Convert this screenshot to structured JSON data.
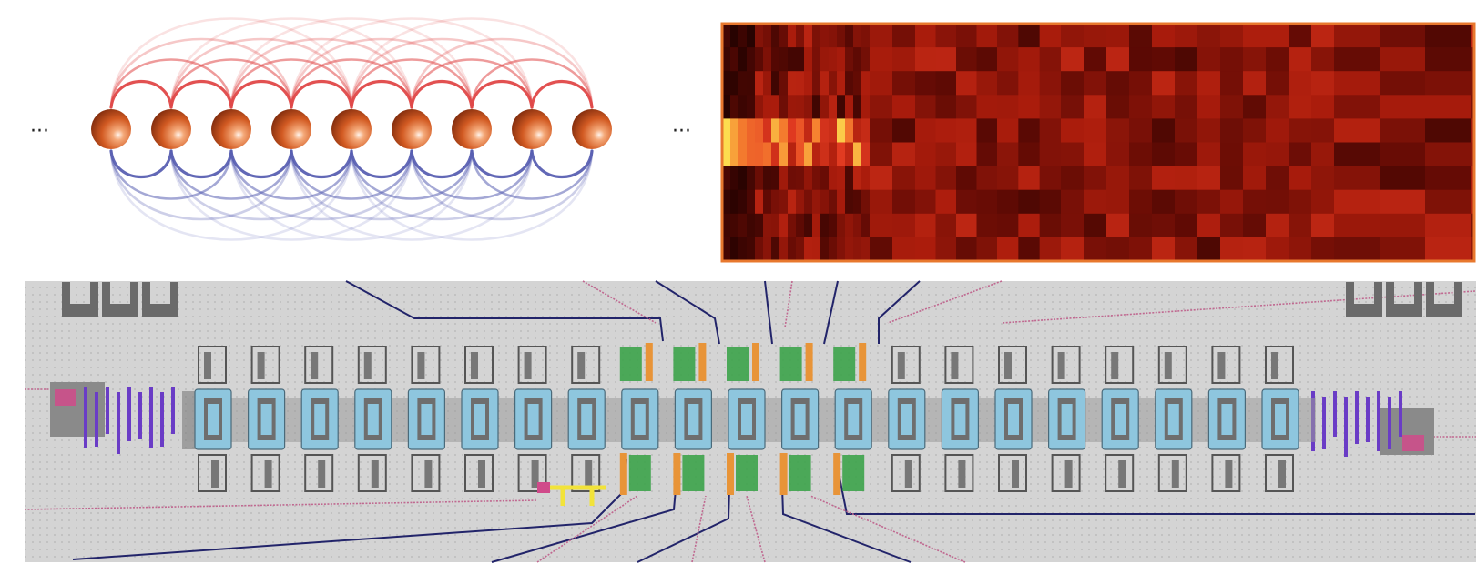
{
  "diagram": {
    "ellipsis_left": "···",
    "ellipsis_right": "···",
    "site_count": 9,
    "coupling_ranges": [
      1,
      2,
      3,
      4
    ],
    "heatmap": {
      "rows": 10,
      "column_widths": [
        50,
        90,
        70,
        50,
        50,
        50,
        50,
        50,
        50
      ],
      "border_color": "#e8782e"
    },
    "chip": {
      "transmon_count": 21,
      "bonding_pads_left": 3,
      "bonding_pads_right": 3
    },
    "colors": {
      "site": "#d25a22",
      "site_highlight": "#f4a878",
      "coupling_above": "#e04848",
      "coupling_below": "#5a60b2",
      "chip_background": "#d4d4d4",
      "chip_qubit_body": "#8ec6de",
      "chip_readout_green": "#3ca34a",
      "chip_readout_orange": "#e89438",
      "chip_bias_purple": "#6a3cc6",
      "chip_control_yellow": "#f2e33a",
      "chip_pad_pink": "#d04a8a",
      "chip_line_navy": "#22246a",
      "chip_line_pink": "#c06890"
    }
  }
}
